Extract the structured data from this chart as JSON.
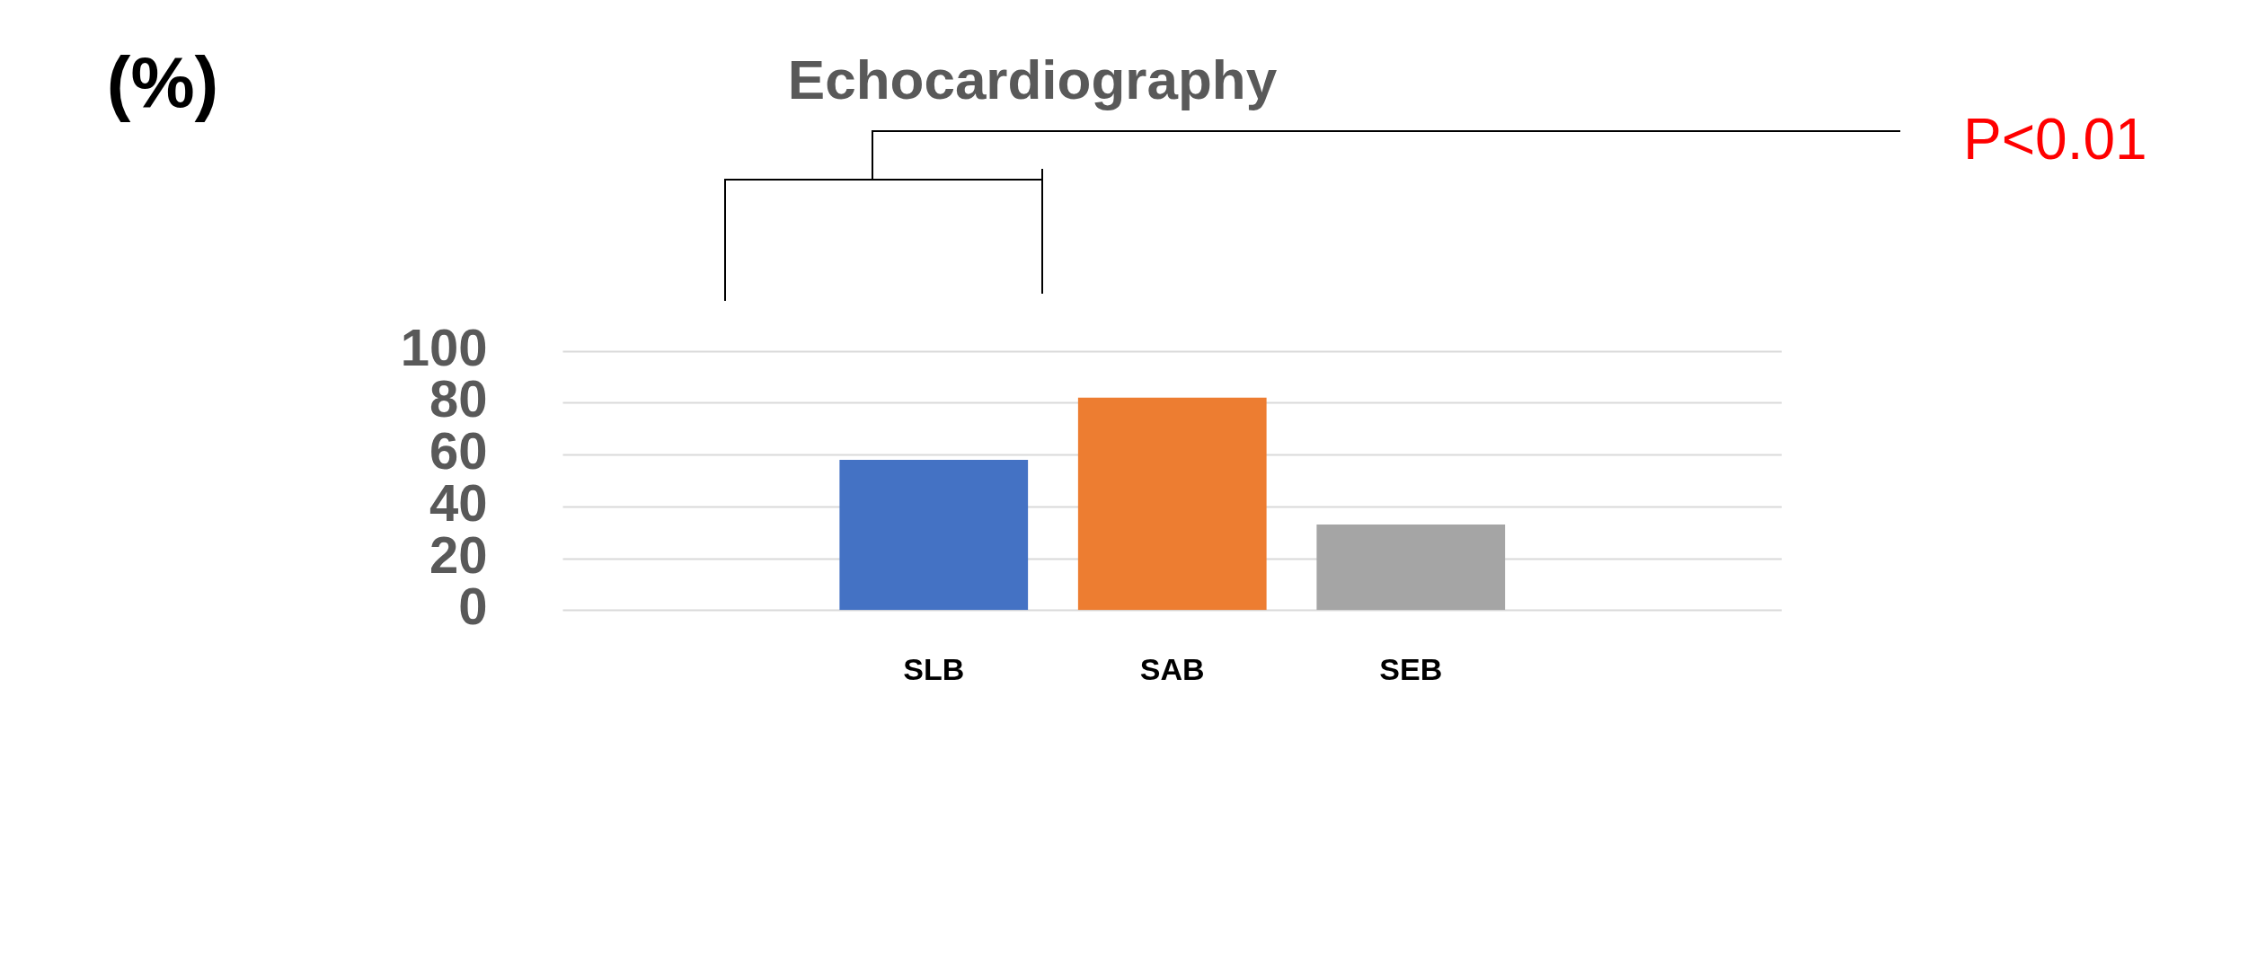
{
  "chart_data": {
    "type": "bar",
    "title": "Echocardiography",
    "ylabel": "(%)",
    "categories": [
      "SLB",
      "SAB",
      "SEB"
    ],
    "values": [
      58,
      82,
      33
    ],
    "colors": [
      "#4472c4",
      "#ed7d31",
      "#a5a5a5"
    ],
    "ylim": [
      0,
      100
    ],
    "yticks": [
      0,
      20,
      40,
      60,
      80,
      100
    ],
    "grid": "y",
    "legend": false,
    "annotations": [
      "P<0.01"
    ]
  }
}
